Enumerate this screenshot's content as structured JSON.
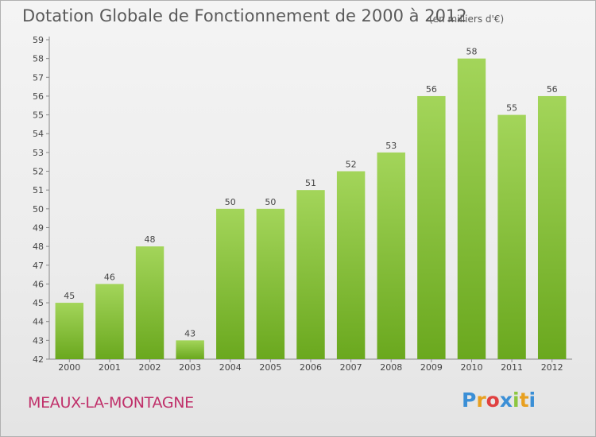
{
  "chart_data": {
    "type": "bar",
    "title": "Dotation Globale de Fonctionnement de 2000 à 2012",
    "subtitle": "(en milliers d'€)",
    "categories": [
      "2000",
      "2001",
      "2002",
      "2003",
      "2004",
      "2005",
      "2006",
      "2007",
      "2008",
      "2009",
      "2010",
      "2011",
      "2012"
    ],
    "values": [
      45,
      46,
      48,
      43,
      50,
      50,
      51,
      52,
      53,
      56,
      58,
      55,
      56
    ],
    "ylim": [
      42,
      59
    ],
    "yticks": [
      42,
      43,
      44,
      45,
      46,
      47,
      48,
      49,
      50,
      51,
      52,
      53,
      54,
      55,
      56,
      57,
      58,
      59
    ],
    "grid": false,
    "bar_color_top": "#a3d55a",
    "bar_color_bottom": "#6aa81e"
  },
  "footer": {
    "place": "MEAUX-LA-MONTAGNE",
    "logo_text": "Proxiti",
    "logo_colors": [
      "#3b8fd6",
      "#e8a020",
      "#e04040",
      "#3b8fd6",
      "#8cc63f",
      "#e8a020",
      "#3b8fd6"
    ]
  }
}
